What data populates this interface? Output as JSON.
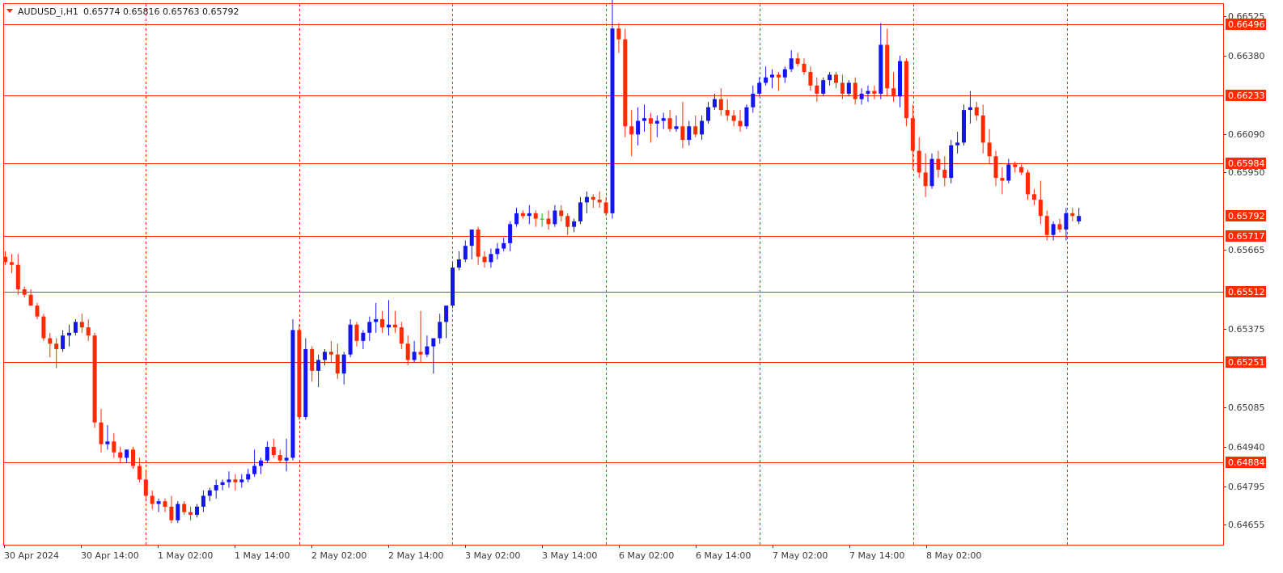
{
  "header": {
    "symbol": "AUDUSD_i,H1",
    "ohlc": "0.65774 0.65816 0.65763 0.65792"
  },
  "colors": {
    "bull": "#1414f0",
    "bear": "#ff2a00",
    "doji": "#22aa22",
    "level_line": "#ff2a00",
    "grid": "#ff2a00",
    "frame": "#ff2a00",
    "text": "#3a3a3a"
  },
  "chart_data": {
    "type": "candlestick",
    "ylim": [
      0.6458,
      0.6657
    ],
    "y_ticks": [
      "0.66525",
      "0.66380",
      "0.66090",
      "0.65950",
      "0.65665",
      "0.65375",
      "0.65085",
      "0.64940",
      "0.64795",
      "0.64655"
    ],
    "x_ticks": [
      "30 Apr 2024",
      "30 Apr 14:00",
      "1 May 02:00",
      "1 May 14:00",
      "2 May 02:00",
      "2 May 14:00",
      "3 May 02:00",
      "3 May 14:00",
      "6 May 02:00",
      "6 May 14:00",
      "7 May 02:00",
      "7 May 14:00",
      "8 May 02:00"
    ],
    "levels": [
      {
        "price": 0.66496,
        "label": "0.66496"
      },
      {
        "price": 0.66233,
        "label": "0.66233"
      },
      {
        "price": 0.65984,
        "label": "0.65984"
      },
      {
        "price": 0.65717,
        "label": "0.65717"
      },
      {
        "price": 0.65512,
        "label": "0.65512"
      },
      {
        "price": 0.65251,
        "label": "0.65251"
      },
      {
        "price": 0.64884,
        "label": "0.64884"
      }
    ],
    "current_price": {
      "price": 0.65792,
      "label": "0.65792"
    },
    "candles_ohlc": [
      [
        0.6564,
        0.6566,
        0.6561,
        0.6562
      ],
      [
        0.6562,
        0.6565,
        0.6558,
        0.6561
      ],
      [
        0.6561,
        0.6565,
        0.655,
        0.6552
      ],
      [
        0.6552,
        0.6553,
        0.6549,
        0.655
      ],
      [
        0.655,
        0.6552,
        0.6546,
        0.6546
      ],
      [
        0.6546,
        0.6547,
        0.6541,
        0.6542
      ],
      [
        0.6542,
        0.6543,
        0.6533,
        0.6534
      ],
      [
        0.6534,
        0.6536,
        0.6527,
        0.6532
      ],
      [
        0.6532,
        0.6534,
        0.6523,
        0.653
      ],
      [
        0.653,
        0.6537,
        0.6529,
        0.6535
      ],
      [
        0.6535,
        0.6539,
        0.6531,
        0.6536
      ],
      [
        0.6536,
        0.6541,
        0.6535,
        0.654
      ],
      [
        0.654,
        0.6543,
        0.6536,
        0.6538
      ],
      [
        0.6538,
        0.6541,
        0.6533,
        0.6535
      ],
      [
        0.6535,
        0.6536,
        0.6501,
        0.6503
      ],
      [
        0.6503,
        0.6508,
        0.6492,
        0.6495
      ],
      [
        0.6495,
        0.6502,
        0.6493,
        0.6496
      ],
      [
        0.6496,
        0.6499,
        0.649,
        0.6492
      ],
      [
        0.6492,
        0.6494,
        0.6488,
        0.649
      ],
      [
        0.649,
        0.6493,
        0.6488,
        0.6493
      ],
      [
        0.6493,
        0.6494,
        0.6486,
        0.6487
      ],
      [
        0.6487,
        0.649,
        0.6481,
        0.6482
      ],
      [
        0.6482,
        0.6485,
        0.6474,
        0.6476
      ],
      [
        0.6476,
        0.6478,
        0.6471,
        0.6473
      ],
      [
        0.6473,
        0.6475,
        0.647,
        0.6474
      ],
      [
        0.6474,
        0.6475,
        0.647,
        0.6472
      ],
      [
        0.6472,
        0.6476,
        0.6466,
        0.6467
      ],
      [
        0.6467,
        0.6474,
        0.6466,
        0.6473
      ],
      [
        0.6473,
        0.6474,
        0.6469,
        0.647
      ],
      [
        0.647,
        0.6472,
        0.6467,
        0.6469
      ],
      [
        0.6469,
        0.6473,
        0.6468,
        0.6472
      ],
      [
        0.6472,
        0.6478,
        0.647,
        0.6476
      ],
      [
        0.6476,
        0.6479,
        0.6474,
        0.6478
      ],
      [
        0.6478,
        0.6482,
        0.6475,
        0.648
      ],
      [
        0.648,
        0.6482,
        0.6478,
        0.6481
      ],
      [
        0.6481,
        0.6485,
        0.6479,
        0.6482
      ],
      [
        0.6482,
        0.6484,
        0.6478,
        0.6481
      ],
      [
        0.6481,
        0.6484,
        0.6479,
        0.6482
      ],
      [
        0.6482,
        0.6486,
        0.6481,
        0.6484
      ],
      [
        0.6484,
        0.6493,
        0.6483,
        0.6487
      ],
      [
        0.6487,
        0.649,
        0.6484,
        0.6489
      ],
      [
        0.6489,
        0.6496,
        0.6488,
        0.6494
      ],
      [
        0.6494,
        0.6497,
        0.649,
        0.6491
      ],
      [
        0.6491,
        0.6493,
        0.6488,
        0.6489
      ],
      [
        0.6489,
        0.6497,
        0.6485,
        0.649
      ],
      [
        0.649,
        0.6541,
        0.6489,
        0.6537
      ],
      [
        0.6537,
        0.6539,
        0.6504,
        0.6505
      ],
      [
        0.6505,
        0.6534,
        0.6504,
        0.653
      ],
      [
        0.653,
        0.6531,
        0.6518,
        0.6522
      ],
      [
        0.6522,
        0.6528,
        0.6516,
        0.6526
      ],
      [
        0.6526,
        0.653,
        0.6524,
        0.6529
      ],
      [
        0.6529,
        0.6533,
        0.6525,
        0.6528
      ],
      [
        0.6528,
        0.6532,
        0.6519,
        0.6521
      ],
      [
        0.6521,
        0.6529,
        0.6517,
        0.6528
      ],
      [
        0.6528,
        0.6541,
        0.6527,
        0.6539
      ],
      [
        0.6539,
        0.654,
        0.6531,
        0.6533
      ],
      [
        0.6533,
        0.6537,
        0.653,
        0.6536
      ],
      [
        0.6536,
        0.6542,
        0.6533,
        0.654
      ],
      [
        0.654,
        0.6547,
        0.6536,
        0.6541
      ],
      [
        0.6541,
        0.6544,
        0.6536,
        0.6538
      ],
      [
        0.6538,
        0.6548,
        0.6535,
        0.6539
      ],
      [
        0.6539,
        0.6544,
        0.6536,
        0.6538
      ],
      [
        0.6538,
        0.654,
        0.653,
        0.6532
      ],
      [
        0.6532,
        0.6535,
        0.6524,
        0.6526
      ],
      [
        0.6526,
        0.6533,
        0.6525,
        0.6529
      ],
      [
        0.6529,
        0.6544,
        0.6525,
        0.6528
      ],
      [
        0.6528,
        0.6535,
        0.6527,
        0.6531
      ],
      [
        0.6531,
        0.6534,
        0.6521,
        0.6534
      ],
      [
        0.6534,
        0.6543,
        0.6532,
        0.654
      ],
      [
        0.654,
        0.6544,
        0.6534,
        0.6546
      ],
      [
        0.6546,
        0.6562,
        0.6545,
        0.656
      ],
      [
        0.656,
        0.6566,
        0.6559,
        0.6563
      ],
      [
        0.6563,
        0.657,
        0.6562,
        0.6568
      ],
      [
        0.6568,
        0.6573,
        0.6563,
        0.6574
      ],
      [
        0.6574,
        0.6575,
        0.6561,
        0.6564
      ],
      [
        0.6564,
        0.6566,
        0.656,
        0.6562
      ],
      [
        0.6562,
        0.6567,
        0.656,
        0.6565
      ],
      [
        0.6565,
        0.6569,
        0.6563,
        0.6567
      ],
      [
        0.6567,
        0.6571,
        0.6566,
        0.6569
      ],
      [
        0.6569,
        0.6577,
        0.6566,
        0.6576
      ],
      [
        0.6576,
        0.6582,
        0.6575,
        0.658
      ],
      [
        0.658,
        0.6581,
        0.6578,
        0.6579
      ],
      [
        0.6579,
        0.6583,
        0.6576,
        0.658
      ],
      [
        0.658,
        0.6581,
        0.6575,
        0.6578
      ],
      [
        0.6578,
        0.658,
        0.6575,
        0.6578
      ],
      [
        0.6578,
        0.6581,
        0.6574,
        0.6576
      ],
      [
        0.6576,
        0.6583,
        0.6575,
        0.6581
      ],
      [
        0.6581,
        0.6583,
        0.6577,
        0.6579
      ],
      [
        0.6579,
        0.658,
        0.6572,
        0.6575
      ],
      [
        0.6575,
        0.6578,
        0.6573,
        0.6577
      ],
      [
        0.6577,
        0.6586,
        0.6576,
        0.6584
      ],
      [
        0.6584,
        0.6588,
        0.658,
        0.6586
      ],
      [
        0.6586,
        0.6587,
        0.6582,
        0.6585
      ],
      [
        0.6585,
        0.6588,
        0.6582,
        0.6584
      ],
      [
        0.6584,
        0.6586,
        0.6579,
        0.658
      ],
      [
        0.658,
        0.666,
        0.6578,
        0.6648
      ],
      [
        0.6648,
        0.665,
        0.6639,
        0.6644
      ],
      [
        0.6644,
        0.6648,
        0.6608,
        0.6612
      ],
      [
        0.6612,
        0.6618,
        0.6601,
        0.6609
      ],
      [
        0.6609,
        0.6619,
        0.6605,
        0.6614
      ],
      [
        0.6614,
        0.662,
        0.661,
        0.6615
      ],
      [
        0.6615,
        0.6617,
        0.6606,
        0.6613
      ],
      [
        0.6613,
        0.6616,
        0.6608,
        0.6614
      ],
      [
        0.6614,
        0.6617,
        0.6611,
        0.6615
      ],
      [
        0.6615,
        0.6618,
        0.661,
        0.6611
      ],
      [
        0.6611,
        0.6616,
        0.661,
        0.6612
      ],
      [
        0.6612,
        0.6621,
        0.6604,
        0.6607
      ],
      [
        0.6607,
        0.6614,
        0.6605,
        0.6612
      ],
      [
        0.6612,
        0.6616,
        0.6608,
        0.6609
      ],
      [
        0.6609,
        0.6616,
        0.6607,
        0.6614
      ],
      [
        0.6614,
        0.6621,
        0.6613,
        0.6619
      ],
      [
        0.6619,
        0.6624,
        0.6618,
        0.6622
      ],
      [
        0.6622,
        0.6626,
        0.6616,
        0.6618
      ],
      [
        0.6618,
        0.6622,
        0.6614,
        0.6616
      ],
      [
        0.6616,
        0.6618,
        0.6612,
        0.6614
      ],
      [
        0.6614,
        0.6618,
        0.661,
        0.6612
      ],
      [
        0.6612,
        0.662,
        0.6611,
        0.6619
      ],
      [
        0.6619,
        0.6627,
        0.6617,
        0.6624
      ],
      [
        0.6624,
        0.663,
        0.6623,
        0.6628
      ],
      [
        0.6628,
        0.6634,
        0.6627,
        0.663
      ],
      [
        0.663,
        0.6633,
        0.6626,
        0.6631
      ],
      [
        0.6631,
        0.6632,
        0.6625,
        0.663
      ],
      [
        0.663,
        0.6634,
        0.6628,
        0.6633
      ],
      [
        0.6633,
        0.664,
        0.6632,
        0.6637
      ],
      [
        0.6637,
        0.6639,
        0.6634,
        0.6635
      ],
      [
        0.6635,
        0.6637,
        0.6631,
        0.6632
      ],
      [
        0.6632,
        0.6634,
        0.6625,
        0.6627
      ],
      [
        0.6627,
        0.663,
        0.6621,
        0.6624
      ],
      [
        0.6624,
        0.663,
        0.6623,
        0.6629
      ],
      [
        0.6629,
        0.6632,
        0.6627,
        0.6631
      ],
      [
        0.6631,
        0.6632,
        0.6626,
        0.6628
      ],
      [
        0.6628,
        0.6631,
        0.6622,
        0.6624
      ],
      [
        0.6624,
        0.6629,
        0.6623,
        0.6628
      ],
      [
        0.6628,
        0.663,
        0.662,
        0.6622
      ],
      [
        0.6622,
        0.6626,
        0.662,
        0.6624
      ],
      [
        0.6624,
        0.6627,
        0.6621,
        0.6625
      ],
      [
        0.6625,
        0.6627,
        0.6622,
        0.6624
      ],
      [
        0.6624,
        0.665,
        0.6622,
        0.6642
      ],
      [
        0.6642,
        0.6648,
        0.6623,
        0.6626
      ],
      [
        0.6626,
        0.6632,
        0.6621,
        0.6623
      ],
      [
        0.6623,
        0.6638,
        0.6619,
        0.6636
      ],
      [
        0.6636,
        0.6637,
        0.6612,
        0.6615
      ],
      [
        0.6615,
        0.662,
        0.6596,
        0.6603
      ],
      [
        0.6603,
        0.6608,
        0.6593,
        0.6595
      ],
      [
        0.6595,
        0.6602,
        0.6586,
        0.659
      ],
      [
        0.659,
        0.6602,
        0.6589,
        0.66
      ],
      [
        0.66,
        0.6603,
        0.6593,
        0.6596
      ],
      [
        0.6596,
        0.6601,
        0.659,
        0.6593
      ],
      [
        0.6593,
        0.6607,
        0.6591,
        0.6605
      ],
      [
        0.6605,
        0.661,
        0.6602,
        0.6606
      ],
      [
        0.6606,
        0.662,
        0.6605,
        0.6618
      ],
      [
        0.6618,
        0.6625,
        0.6613,
        0.6619
      ],
      [
        0.6619,
        0.6621,
        0.6614,
        0.6616
      ],
      [
        0.6616,
        0.662,
        0.6602,
        0.6606
      ],
      [
        0.6606,
        0.6611,
        0.6598,
        0.6601
      ],
      [
        0.6601,
        0.6603,
        0.659,
        0.6593
      ],
      [
        0.6593,
        0.6597,
        0.6587,
        0.6592
      ],
      [
        0.6592,
        0.66,
        0.6591,
        0.6598
      ],
      [
        0.6598,
        0.6599,
        0.6595,
        0.6597
      ],
      [
        0.6597,
        0.6598,
        0.6594,
        0.6595
      ],
      [
        0.6595,
        0.6596,
        0.6585,
        0.6587
      ],
      [
        0.6587,
        0.6589,
        0.6583,
        0.6585
      ],
      [
        0.6585,
        0.6592,
        0.6576,
        0.6579
      ],
      [
        0.6579,
        0.6581,
        0.657,
        0.6572
      ],
      [
        0.6572,
        0.6577,
        0.657,
        0.6576
      ],
      [
        0.6576,
        0.6578,
        0.6573,
        0.6574
      ],
      [
        0.6574,
        0.6582,
        0.657,
        0.658
      ],
      [
        0.658,
        0.6582,
        0.6577,
        0.6579
      ],
      [
        0.6577,
        0.6582,
        0.6576,
        0.6579
      ]
    ]
  }
}
